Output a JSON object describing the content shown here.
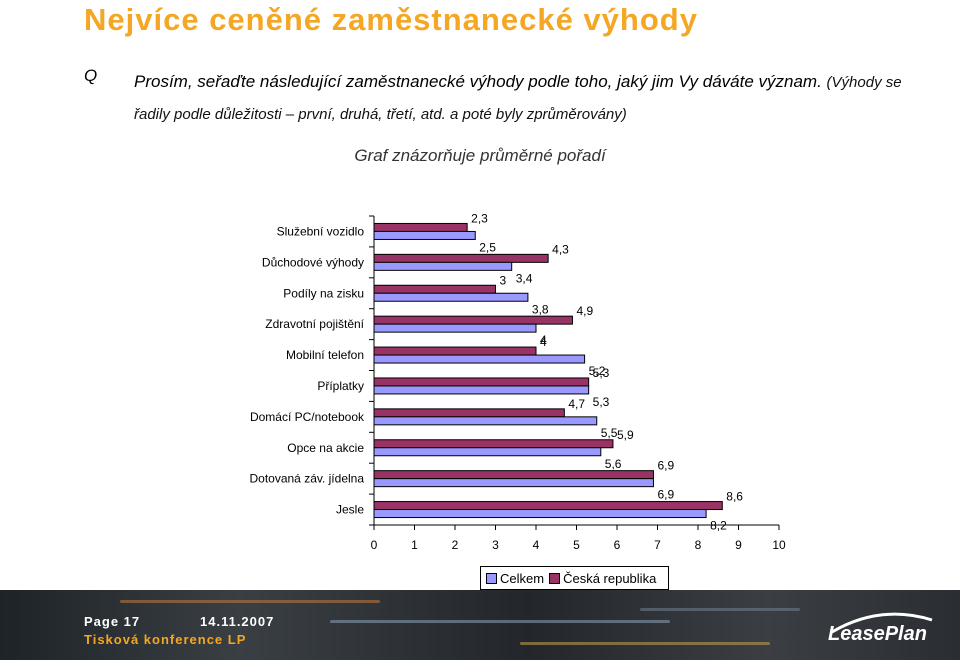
{
  "page": {
    "title": "Nejvíce ceněné zaměstnanecké výhody",
    "q_label": "Q",
    "question_main": "Prosím, seřaďte následující zaměstnanecké výhody podle toho, jaký jim Vy dáváte význam.",
    "question_note": "(Výhody se řadily podle důležitosti – první, druhá, třetí, atd. a poté byly zprůměrovány)",
    "subtitle": "Graf znázorňuje průměrné pořadí"
  },
  "chart_data": {
    "type": "bar",
    "orientation": "horizontal",
    "categories": [
      "Služební vozidlo",
      "Důchodové výhody",
      "Podíly na zisku",
      "Zdravotní pojištění",
      "Mobilní telefon",
      "Příplatky",
      "Domácí PC/notebook",
      "Opce na akcie",
      "Dotovaná záv. jídelna",
      "Jesle"
    ],
    "series": [
      {
        "name": "Celkem",
        "color": "#9999ff",
        "values": [
          2.5,
          3.4,
          3.8,
          4,
          5.2,
          5.3,
          5.5,
          5.6,
          6.9,
          8.2
        ],
        "labels": [
          "2,5",
          "3,4",
          "3,8",
          "4",
          "5,2",
          "5,3",
          "5,5",
          "5,6",
          "6,9",
          "8,2"
        ]
      },
      {
        "name": "Česká republika",
        "color": "#993366",
        "values": [
          2.3,
          4.3,
          3,
          4.9,
          4,
          5.3,
          4.7,
          5.9,
          6.9,
          8.6
        ],
        "labels": [
          "2,3",
          "4,3",
          "3",
          "4,9",
          "4",
          "5,3",
          "4,7",
          "5,9",
          "6,9",
          "8,6"
        ]
      }
    ],
    "x_ticks": [
      "0",
      "1",
      "2",
      "3",
      "4",
      "5",
      "6",
      "7",
      "8",
      "9",
      "10"
    ],
    "xlim": [
      0,
      10
    ],
    "legend": "bottom"
  },
  "footer": {
    "page_label": "Page 17",
    "date": "14.11.2007",
    "conference": "Tisková konference LP",
    "logo_text": "LeasePlan"
  }
}
